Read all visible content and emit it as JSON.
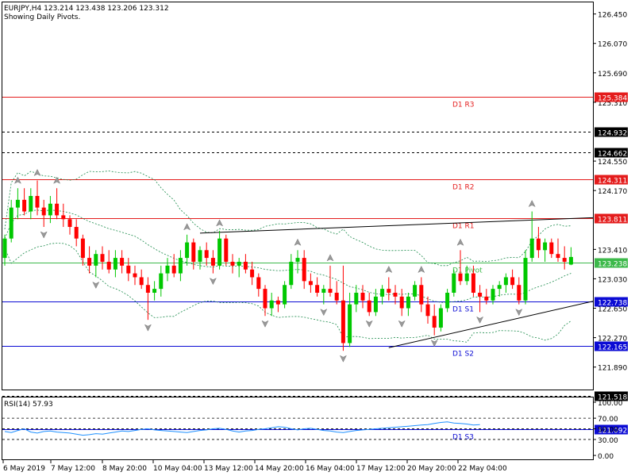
{
  "header": {
    "symbol_line": "EURJPY,H4  123.214 123.438 123.206 123.312",
    "subtitle": "Showing Daily Pivots."
  },
  "rsi": {
    "label": "RSI(14) 57.93",
    "ticks": [
      "100.00",
      "70.00",
      "50.00",
      "30.00",
      "0.00"
    ]
  },
  "colors": {
    "bull": "#00c800",
    "bear": "#ff0000",
    "resistance": "#e41c1c",
    "pivot": "#3cb94a",
    "support": "#0b0bd4",
    "dotted": "#000000",
    "band": "#1a8a4a",
    "rsi_line": "#1e90ff"
  },
  "chart_data": {
    "type": "candlestick",
    "symbol": "EURJPY",
    "timeframe": "H4",
    "ylim": [
      121.6,
      126.6
    ],
    "y_ticks": [
      "126.450",
      "126.070",
      "125.690",
      "125.310",
      "124.550",
      "124.170",
      "123.410",
      "123.030",
      "122.650",
      "122.270",
      "121.890"
    ],
    "x_ticks": [
      "6 May 2019",
      "7 May 12:00",
      "8 May 20:00",
      "10 May 04:00",
      "13 May 12:00",
      "14 May 20:00",
      "16 May 04:00",
      "17 May 12:00",
      "20 May 20:00",
      "22 May 04:00"
    ],
    "pivot_levels": [
      {
        "name": "D1 R3",
        "value": 125.384,
        "label": "125.384",
        "kind": "resistance"
      },
      {
        "name": "D1 R2",
        "value": 124.311,
        "label": "124.311",
        "kind": "resistance"
      },
      {
        "name": "D1 R1",
        "value": 123.811,
        "label": "123.811",
        "kind": "resistance"
      },
      {
        "name": "D1 Pivot",
        "value": 123.238,
        "label": "123.238",
        "kind": "pivot"
      },
      {
        "name": "D1 S1",
        "value": 122.738,
        "label": "122.738",
        "kind": "support"
      },
      {
        "name": "D1 S2",
        "value": 122.165,
        "label": "122.165",
        "kind": "support"
      },
      {
        "name": "D1 S3",
        "value": 121.092,
        "label": "121.092",
        "kind": "support"
      }
    ],
    "dotted_levels": [
      {
        "value": 124.932,
        "label": "124.932"
      },
      {
        "value": 124.662,
        "label": "124.662"
      },
      {
        "value": 121.518,
        "label": "121.518"
      }
    ],
    "trendlines": [
      {
        "from": [
          30,
          123.62
        ],
        "to": [
          123,
          123.82
        ]
      },
      {
        "from": [
          59,
          122.14
        ],
        "to": [
          123,
          122.74
        ]
      }
    ],
    "candles": [
      {
        "o": 123.3,
        "h": 123.6,
        "l": 123.2,
        "c": 123.55
      },
      {
        "o": 123.55,
        "h": 124.05,
        "l": 123.5,
        "c": 123.95
      },
      {
        "o": 123.95,
        "h": 124.2,
        "l": 123.8,
        "c": 124.05
      },
      {
        "o": 124.05,
        "h": 124.2,
        "l": 123.85,
        "c": 123.9
      },
      {
        "o": 123.9,
        "h": 124.2,
        "l": 123.8,
        "c": 124.1
      },
      {
        "o": 124.1,
        "h": 124.3,
        "l": 123.85,
        "c": 123.95
      },
      {
        "o": 123.95,
        "h": 124.05,
        "l": 123.7,
        "c": 123.85
      },
      {
        "o": 123.85,
        "h": 124.1,
        "l": 123.75,
        "c": 124.0
      },
      {
        "o": 124.0,
        "h": 124.2,
        "l": 123.8,
        "c": 123.85
      },
      {
        "o": 123.85,
        "h": 124.0,
        "l": 123.7,
        "c": 123.8
      },
      {
        "o": 123.8,
        "h": 123.85,
        "l": 123.6,
        "c": 123.7
      },
      {
        "o": 123.7,
        "h": 123.8,
        "l": 123.45,
        "c": 123.55
      },
      {
        "o": 123.55,
        "h": 123.6,
        "l": 123.2,
        "c": 123.3
      },
      {
        "o": 123.3,
        "h": 123.45,
        "l": 123.1,
        "c": 123.2
      },
      {
        "o": 123.2,
        "h": 123.4,
        "l": 123.05,
        "c": 123.35
      },
      {
        "o": 123.35,
        "h": 123.45,
        "l": 123.15,
        "c": 123.25
      },
      {
        "o": 123.25,
        "h": 123.4,
        "l": 123.1,
        "c": 123.15
      },
      {
        "o": 123.15,
        "h": 123.4,
        "l": 123.05,
        "c": 123.3
      },
      {
        "o": 123.3,
        "h": 123.4,
        "l": 123.1,
        "c": 123.2
      },
      {
        "o": 123.2,
        "h": 123.3,
        "l": 123.0,
        "c": 123.1
      },
      {
        "o": 123.1,
        "h": 123.2,
        "l": 122.95,
        "c": 123.05
      },
      {
        "o": 123.05,
        "h": 123.15,
        "l": 122.9,
        "c": 122.95
      },
      {
        "o": 122.95,
        "h": 123.05,
        "l": 122.5,
        "c": 122.85
      },
      {
        "o": 122.85,
        "h": 123.0,
        "l": 122.75,
        "c": 122.9
      },
      {
        "o": 122.9,
        "h": 123.2,
        "l": 122.8,
        "c": 123.1
      },
      {
        "o": 123.1,
        "h": 123.3,
        "l": 123.0,
        "c": 123.2
      },
      {
        "o": 123.2,
        "h": 123.35,
        "l": 123.05,
        "c": 123.1
      },
      {
        "o": 123.1,
        "h": 123.4,
        "l": 123.0,
        "c": 123.3
      },
      {
        "o": 123.3,
        "h": 123.6,
        "l": 123.2,
        "c": 123.5
      },
      {
        "o": 123.5,
        "h": 123.55,
        "l": 123.15,
        "c": 123.25
      },
      {
        "o": 123.25,
        "h": 123.45,
        "l": 123.15,
        "c": 123.4
      },
      {
        "o": 123.4,
        "h": 123.5,
        "l": 123.2,
        "c": 123.3
      },
      {
        "o": 123.3,
        "h": 123.4,
        "l": 123.1,
        "c": 123.2
      },
      {
        "o": 123.2,
        "h": 123.65,
        "l": 123.15,
        "c": 123.55
      },
      {
        "o": 123.55,
        "h": 123.6,
        "l": 123.2,
        "c": 123.25
      },
      {
        "o": 123.25,
        "h": 123.35,
        "l": 123.1,
        "c": 123.2
      },
      {
        "o": 123.2,
        "h": 123.3,
        "l": 123.05,
        "c": 123.25
      },
      {
        "o": 123.25,
        "h": 123.35,
        "l": 123.1,
        "c": 123.15
      },
      {
        "o": 123.15,
        "h": 123.25,
        "l": 122.95,
        "c": 123.05
      },
      {
        "o": 123.05,
        "h": 123.1,
        "l": 122.8,
        "c": 122.9
      },
      {
        "o": 122.9,
        "h": 122.95,
        "l": 122.55,
        "c": 122.65
      },
      {
        "o": 122.65,
        "h": 122.85,
        "l": 122.55,
        "c": 122.75
      },
      {
        "o": 122.75,
        "h": 122.8,
        "l": 122.6,
        "c": 122.7
      },
      {
        "o": 122.7,
        "h": 123.0,
        "l": 122.65,
        "c": 122.95
      },
      {
        "o": 122.95,
        "h": 123.35,
        "l": 122.9,
        "c": 123.25
      },
      {
        "o": 123.25,
        "h": 123.4,
        "l": 123.1,
        "c": 123.3
      },
      {
        "o": 123.3,
        "h": 123.4,
        "l": 122.9,
        "c": 123.0
      },
      {
        "o": 123.0,
        "h": 123.1,
        "l": 122.85,
        "c": 122.95
      },
      {
        "o": 122.95,
        "h": 123.05,
        "l": 122.8,
        "c": 122.85
      },
      {
        "o": 122.85,
        "h": 122.95,
        "l": 122.7,
        "c": 122.9
      },
      {
        "o": 122.9,
        "h": 123.2,
        "l": 122.8,
        "c": 122.85
      },
      {
        "o": 122.85,
        "h": 123.0,
        "l": 122.7,
        "c": 122.75
      },
      {
        "o": 122.75,
        "h": 123.2,
        "l": 122.1,
        "c": 122.2
      },
      {
        "o": 122.2,
        "h": 122.85,
        "l": 122.15,
        "c": 122.7
      },
      {
        "o": 122.7,
        "h": 122.95,
        "l": 122.6,
        "c": 122.85
      },
      {
        "o": 122.85,
        "h": 122.95,
        "l": 122.65,
        "c": 122.75
      },
      {
        "o": 122.75,
        "h": 122.85,
        "l": 122.55,
        "c": 122.6
      },
      {
        "o": 122.6,
        "h": 122.9,
        "l": 122.55,
        "c": 122.8
      },
      {
        "o": 122.8,
        "h": 122.95,
        "l": 122.7,
        "c": 122.9
      },
      {
        "o": 122.9,
        "h": 123.05,
        "l": 122.75,
        "c": 122.85
      },
      {
        "o": 122.85,
        "h": 122.95,
        "l": 122.7,
        "c": 122.8
      },
      {
        "o": 122.8,
        "h": 122.9,
        "l": 122.55,
        "c": 122.65
      },
      {
        "o": 122.65,
        "h": 122.85,
        "l": 122.55,
        "c": 122.8
      },
      {
        "o": 122.8,
        "h": 123.0,
        "l": 122.75,
        "c": 122.95
      },
      {
        "o": 122.95,
        "h": 123.05,
        "l": 122.6,
        "c": 122.7
      },
      {
        "o": 122.7,
        "h": 122.8,
        "l": 122.45,
        "c": 122.55
      },
      {
        "o": 122.55,
        "h": 122.7,
        "l": 122.3,
        "c": 122.4
      },
      {
        "o": 122.4,
        "h": 122.7,
        "l": 122.35,
        "c": 122.65
      },
      {
        "o": 122.65,
        "h": 122.9,
        "l": 122.6,
        "c": 122.85
      },
      {
        "o": 122.85,
        "h": 123.15,
        "l": 122.8,
        "c": 123.1
      },
      {
        "o": 123.1,
        "h": 123.4,
        "l": 122.95,
        "c": 123.0
      },
      {
        "o": 123.0,
        "h": 123.2,
        "l": 122.95,
        "c": 123.1
      },
      {
        "o": 123.1,
        "h": 123.2,
        "l": 122.8,
        "c": 122.85
      },
      {
        "o": 122.85,
        "h": 122.95,
        "l": 122.6,
        "c": 122.8
      },
      {
        "o": 122.8,
        "h": 122.9,
        "l": 122.7,
        "c": 122.75
      },
      {
        "o": 122.75,
        "h": 122.95,
        "l": 122.7,
        "c": 122.9
      },
      {
        "o": 122.9,
        "h": 123.0,
        "l": 122.8,
        "c": 122.95
      },
      {
        "o": 122.95,
        "h": 123.1,
        "l": 122.85,
        "c": 123.05
      },
      {
        "o": 123.05,
        "h": 123.15,
        "l": 122.9,
        "c": 122.95
      },
      {
        "o": 122.95,
        "h": 123.05,
        "l": 122.7,
        "c": 122.75
      },
      {
        "o": 122.75,
        "h": 123.4,
        "l": 122.7,
        "c": 123.3
      },
      {
        "o": 123.3,
        "h": 123.9,
        "l": 123.25,
        "c": 123.55
      },
      {
        "o": 123.55,
        "h": 123.7,
        "l": 123.3,
        "c": 123.4
      },
      {
        "o": 123.4,
        "h": 123.55,
        "l": 123.25,
        "c": 123.5
      },
      {
        "o": 123.5,
        "h": 123.55,
        "l": 123.3,
        "c": 123.35
      },
      {
        "o": 123.35,
        "h": 123.55,
        "l": 123.25,
        "c": 123.3
      },
      {
        "o": 123.3,
        "h": 123.45,
        "l": 123.15,
        "c": 123.25
      },
      {
        "o": 123.214,
        "h": 123.438,
        "l": 123.206,
        "c": 123.312
      }
    ],
    "rsi_ylim": [
      0,
      100
    ],
    "rsi_levels": [
      70,
      50,
      30
    ],
    "rsi_values": [
      45,
      43,
      47,
      50,
      44,
      42,
      45,
      46,
      44,
      43,
      42,
      40,
      38,
      39,
      41,
      40,
      42,
      44,
      46,
      45,
      47,
      49,
      50,
      48,
      47,
      46,
      45,
      44,
      43,
      45,
      47,
      48,
      50,
      51,
      49,
      46,
      44,
      46,
      47,
      49,
      50,
      52,
      54,
      53,
      50,
      48,
      50,
      51,
      49,
      47,
      46,
      44,
      43,
      45,
      47,
      48,
      49,
      50,
      51,
      52,
      53,
      54,
      55,
      56,
      57,
      58,
      60,
      62,
      63,
      61,
      60,
      59,
      57,
      58
    ],
    "rsi_last": 57.93
  }
}
